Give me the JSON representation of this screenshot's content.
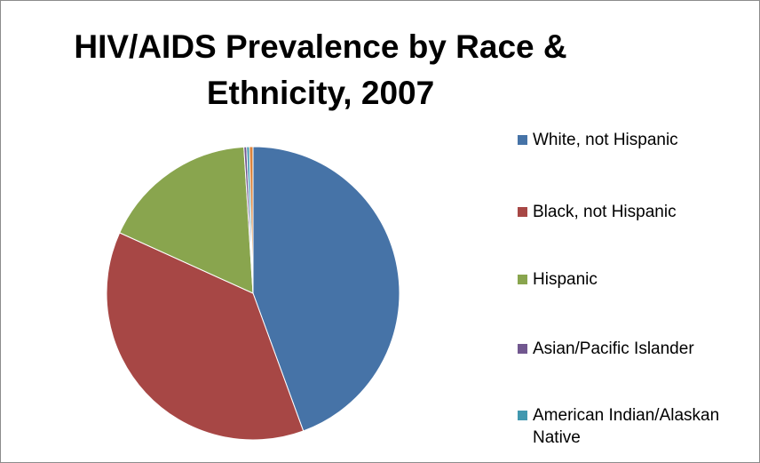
{
  "chart_data": {
    "type": "pie",
    "title": "HIV/AIDS Prevalence by Race & Ethnicity, 2007",
    "title_lines": [
      "HIV/AIDS Prevalence by Race &",
      "Ethnicity, 2007"
    ],
    "legend_position": "right",
    "slices": [
      {
        "label": "White, not Hispanic",
        "value": 44.6,
        "color": "#4673a7"
      },
      {
        "label": "Black, not Hispanic",
        "value": 37.5,
        "color": "#a74745"
      },
      {
        "label": "Hispanic",
        "value": 17.3,
        "color": "#89a54e"
      },
      {
        "label": "Asian/Pacific Islander",
        "value": 0.3,
        "color": "#71578f"
      },
      {
        "label": "American Indian/Alaskan Native",
        "value": 0.3,
        "color": "#4198af"
      },
      {
        "label": "",
        "value": 0.4,
        "color": "#db843d"
      }
    ]
  }
}
